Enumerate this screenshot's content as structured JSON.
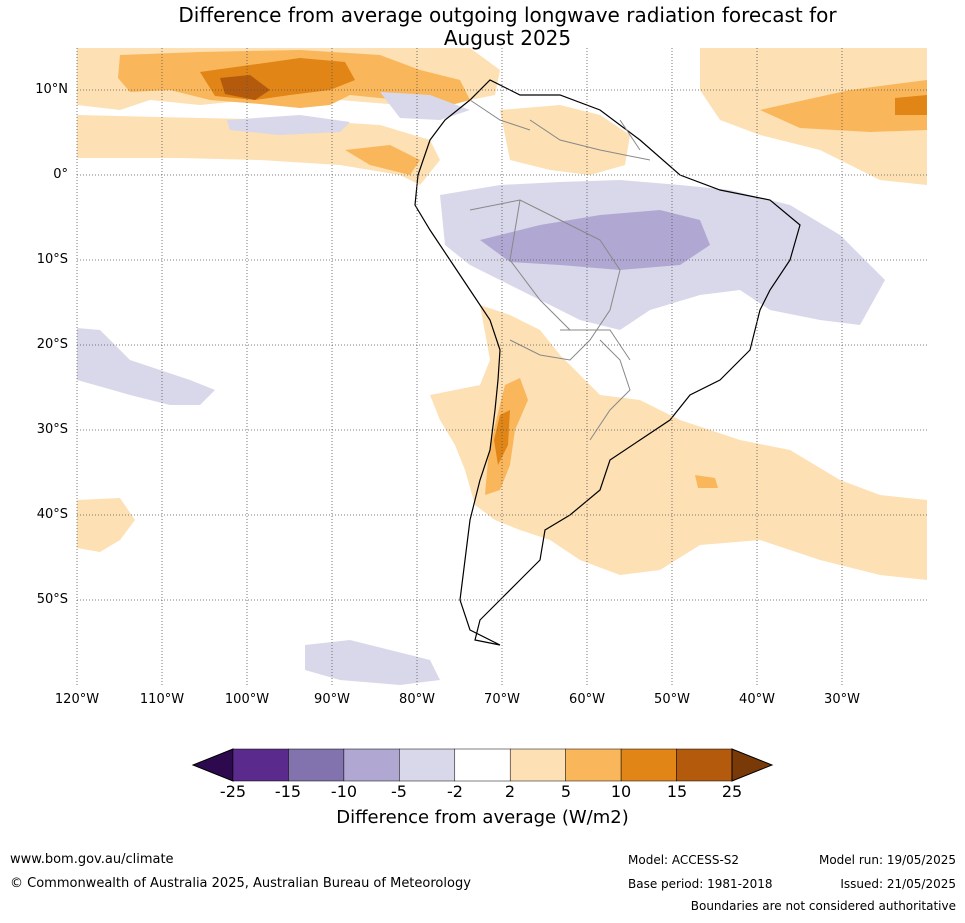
{
  "title_line1": "Difference from average outgoing longwave radiation forecast for",
  "title_line2": "August 2025",
  "lat_labels": [
    "10°N",
    "0°",
    "10°S",
    "20°S",
    "30°S",
    "40°S",
    "50°S"
  ],
  "lon_labels": [
    "120°W",
    "110°W",
    "100°W",
    "90°W",
    "80°W",
    "70°W",
    "60°W",
    "50°W",
    "40°W",
    "30°W"
  ],
  "colorbar": {
    "ticks": [
      "-25",
      "-15",
      "-10",
      "-5",
      "-2",
      "2",
      "5",
      "10",
      "15",
      "25"
    ],
    "colors": [
      "#2d0a4e",
      "#5a2a8c",
      "#8273ae",
      "#b0a8d2",
      "#d8d8ea",
      "#ffffff",
      "#fde0b3",
      "#fab65a",
      "#e08516",
      "#b45a0c",
      "#7a3a08"
    ],
    "label": "Difference from average (W/m2)"
  },
  "footer": {
    "url": "www.bom.gov.au/climate",
    "copyright": "© Commonwealth of Australia 2025, Australian Bureau of Meteorology",
    "model": "Model: ACCESS-S2",
    "base_period": "Base period: 1981-2018",
    "model_run": "Model run: 19/05/2025",
    "issued": "Issued: 21/05/2025",
    "disclaimer": "Boundaries are not considered authoritative"
  }
}
